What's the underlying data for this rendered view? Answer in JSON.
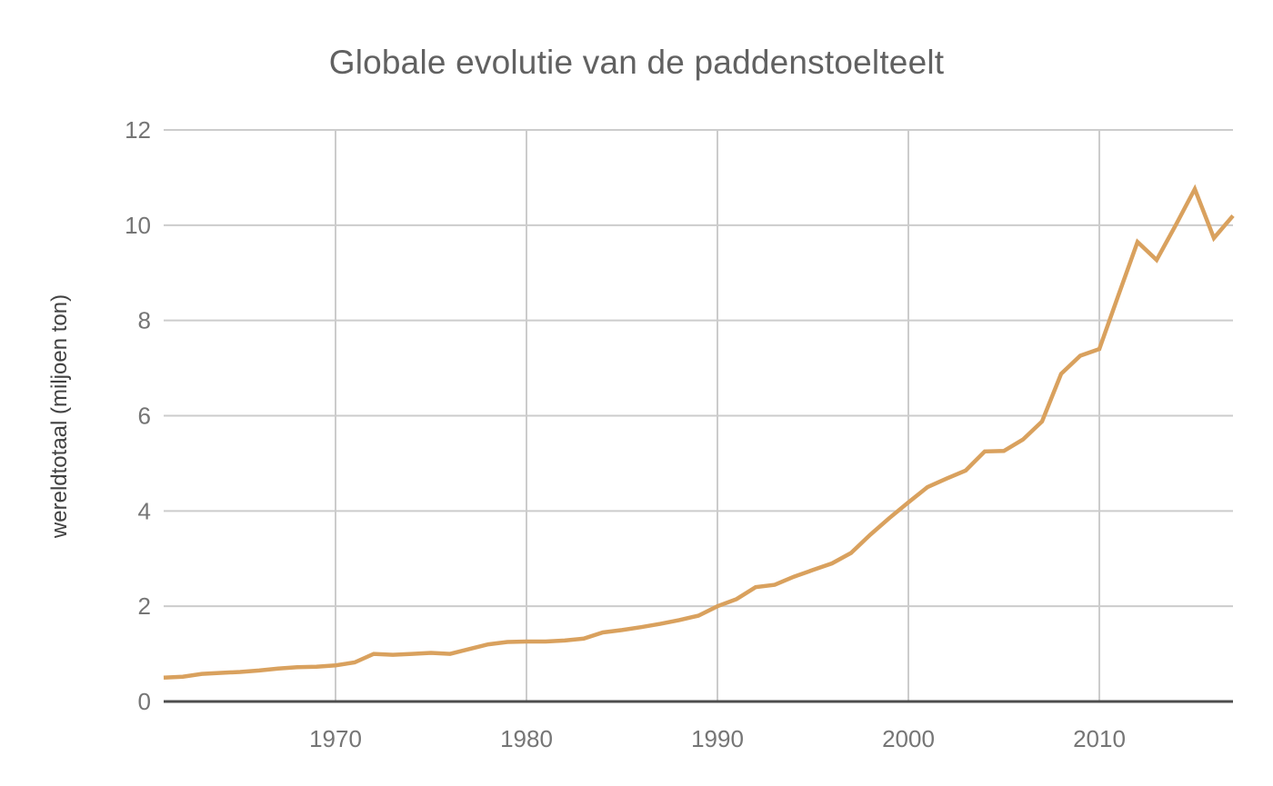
{
  "chart_data": {
    "type": "line",
    "title": "Globale evolutie van de paddenstoelteelt",
    "xlabel": "",
    "ylabel": "wereldtotaal (miljoen ton)",
    "legend_position": "none",
    "grid": true,
    "xlim": [
      1961,
      2017
    ],
    "ylim": [
      0,
      12
    ],
    "x_ticks": [
      1970,
      1980,
      1990,
      2000,
      2010
    ],
    "y_ticks": [
      0,
      2,
      4,
      6,
      8,
      10,
      12
    ],
    "x": [
      1961,
      1962,
      1963,
      1964,
      1965,
      1966,
      1967,
      1968,
      1969,
      1970,
      1971,
      1972,
      1973,
      1974,
      1975,
      1976,
      1977,
      1978,
      1979,
      1980,
      1981,
      1982,
      1983,
      1984,
      1985,
      1986,
      1987,
      1988,
      1989,
      1990,
      1991,
      1992,
      1993,
      1994,
      1995,
      1996,
      1997,
      1998,
      1999,
      2000,
      2001,
      2002,
      2003,
      2004,
      2005,
      2006,
      2007,
      2008,
      2009,
      2010,
      2011,
      2012,
      2013,
      2014,
      2015,
      2016,
      2017
    ],
    "series": [
      {
        "name": "wereldtotaal (miljoen ton)",
        "values": [
          0.5,
          0.52,
          0.58,
          0.6,
          0.62,
          0.65,
          0.69,
          0.72,
          0.73,
          0.76,
          0.82,
          1.0,
          0.98,
          1.0,
          1.02,
          1.0,
          1.1,
          1.2,
          1.25,
          1.26,
          1.26,
          1.28,
          1.32,
          1.45,
          1.5,
          1.56,
          1.63,
          1.71,
          1.8,
          2.0,
          2.15,
          2.4,
          2.45,
          2.62,
          2.76,
          2.9,
          3.12,
          3.5,
          3.85,
          4.18,
          4.5,
          4.68,
          4.85,
          5.25,
          5.26,
          5.5,
          5.88,
          6.88,
          7.26,
          7.4,
          8.53,
          9.65,
          9.27,
          10.0,
          10.76,
          9.73,
          10.2
        ]
      }
    ],
    "style": {
      "line_color": "#d9a15e",
      "line_width": 4.5,
      "gridline_color": "#cccccc",
      "axis_line_color": "#4d4d4d",
      "tick_label_color": "#757575",
      "title_color": "#616161",
      "y_axis_label_color": "#414141",
      "background": "#ffffff"
    }
  }
}
